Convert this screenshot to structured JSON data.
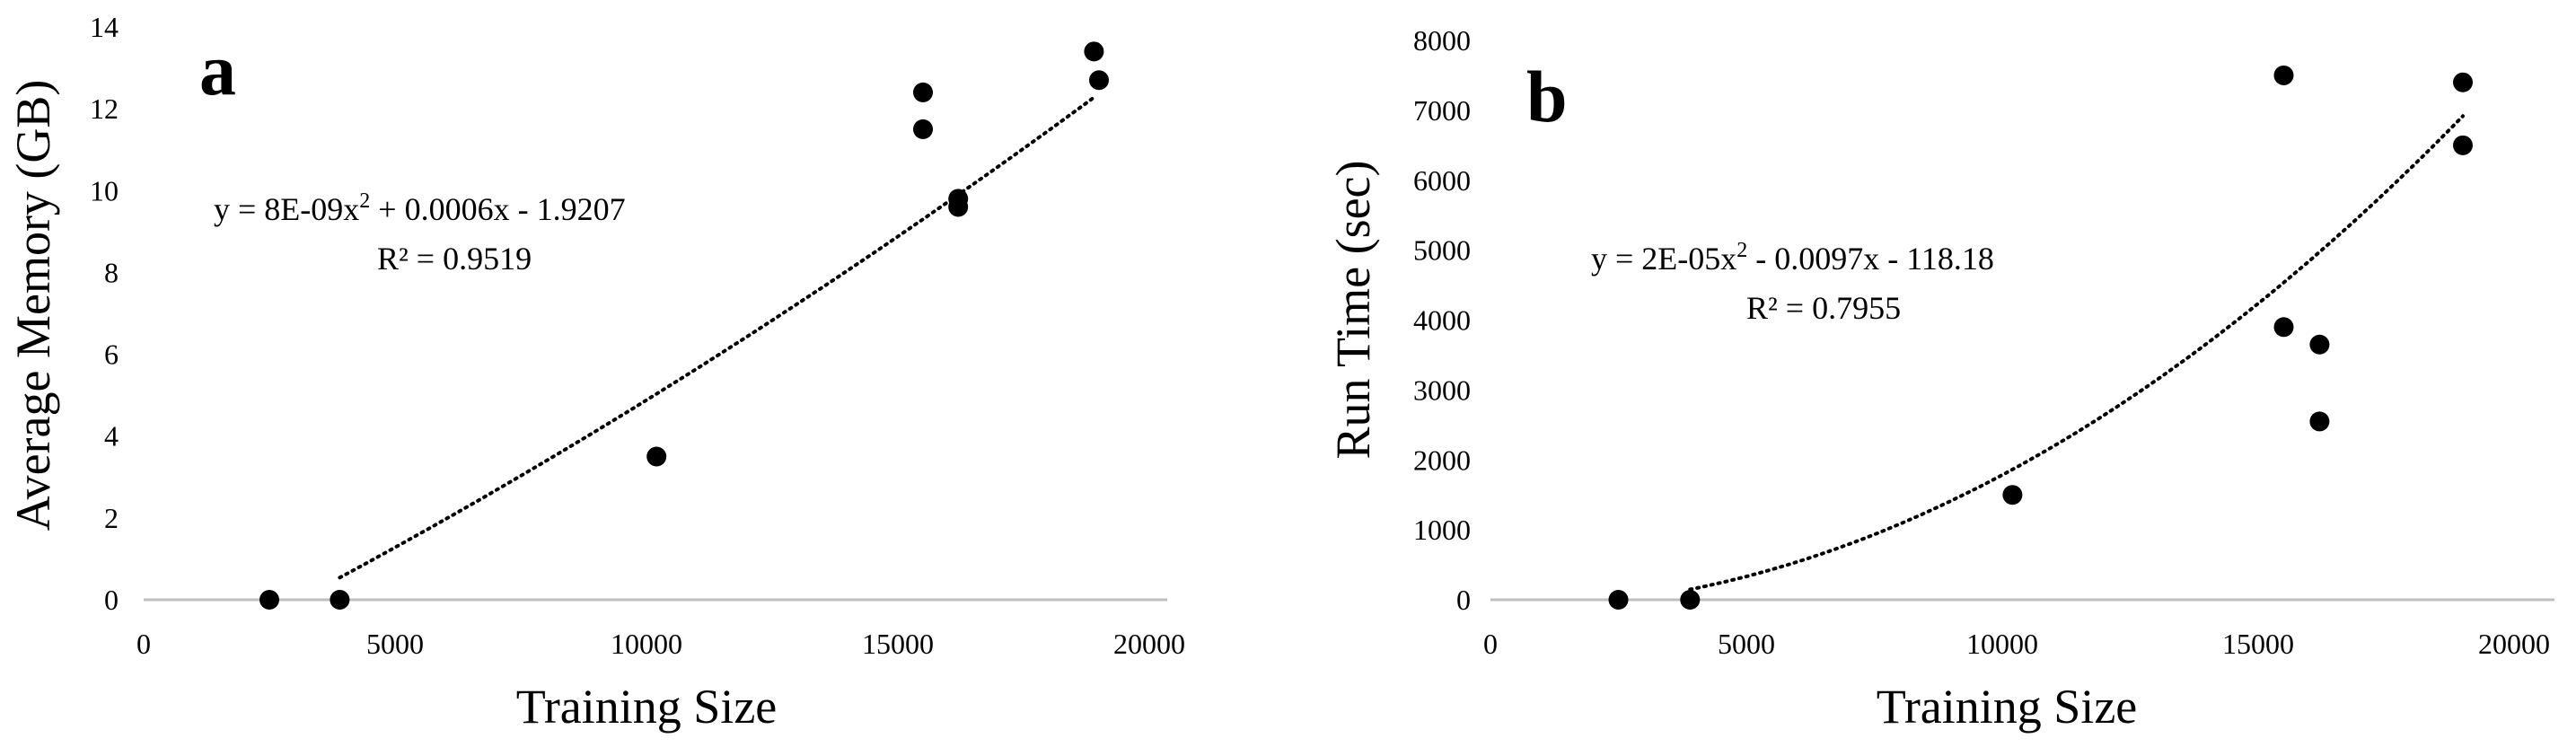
{
  "chart_data": [
    {
      "type": "scatter",
      "panel_label": "a",
      "xlabel": "Training Size",
      "ylabel": "Average Memory (GB)",
      "xlim": [
        0,
        20000
      ],
      "ylim": [
        0,
        14
      ],
      "x_ticks": [
        0,
        5000,
        10000,
        15000,
        20000
      ],
      "y_ticks": [
        0,
        2,
        4,
        6,
        8,
        10,
        12,
        14
      ],
      "x_tick_labels": [
        "0",
        "5000",
        "10000",
        "15000",
        "20000"
      ],
      "y_tick_labels": [
        "0",
        "2",
        "4",
        "6",
        "8",
        "10",
        "12",
        "14"
      ],
      "grid": false,
      "points": {
        "x": [
          2500,
          3900,
          10200,
          15500,
          15500,
          16200,
          16200,
          18900,
          19000
        ],
        "y": [
          0.0,
          0.0,
          3.5,
          12.4,
          11.5,
          9.8,
          9.6,
          13.4,
          12.7
        ]
      },
      "trendline": {
        "type": "polynomial-2",
        "coefficients": [
          8e-09,
          0.0006,
          -1.9207
        ],
        "x_range": [
          3900,
          18900
        ],
        "style": "dotted",
        "equation_line1": "y = 8E-09x",
        "equation_exp": "2",
        "equation_line1_rest": " + 0.0006x - 1.9207",
        "r_squared": "R² = 0.9519"
      }
    },
    {
      "type": "scatter",
      "panel_label": "b",
      "xlabel": "Training Size",
      "ylabel": "Run Time (sec)",
      "xlim": [
        0,
        20000
      ],
      "ylim": [
        0,
        8000
      ],
      "x_ticks": [
        0,
        5000,
        10000,
        15000,
        20000
      ],
      "y_ticks": [
        0,
        1000,
        2000,
        3000,
        4000,
        5000,
        6000,
        7000,
        8000
      ],
      "x_tick_labels": [
        "0",
        "5000",
        "10000",
        "15000",
        "20000"
      ],
      "y_tick_labels": [
        "0",
        "1000",
        "2000",
        "3000",
        "4000",
        "5000",
        "6000",
        "7000",
        "8000"
      ],
      "grid": false,
      "points": {
        "x": [
          2500,
          3900,
          10200,
          15500,
          15500,
          16200,
          16200,
          19000,
          19000
        ],
        "y": [
          0,
          0,
          1500,
          7500,
          3900,
          3650,
          2550,
          7400,
          6500
        ]
      },
      "trendline": {
        "type": "polynomial-2",
        "coefficients": [
          2e-05,
          -0.0097,
          -118.18
        ],
        "x_range": [
          3900,
          19000
        ],
        "style": "dotted",
        "equation_line1": "y = 2E-05x",
        "equation_exp": "2",
        "equation_line1_rest": " - 0.0097x - 118.18",
        "r_squared": "R² = 0.7955"
      }
    }
  ]
}
